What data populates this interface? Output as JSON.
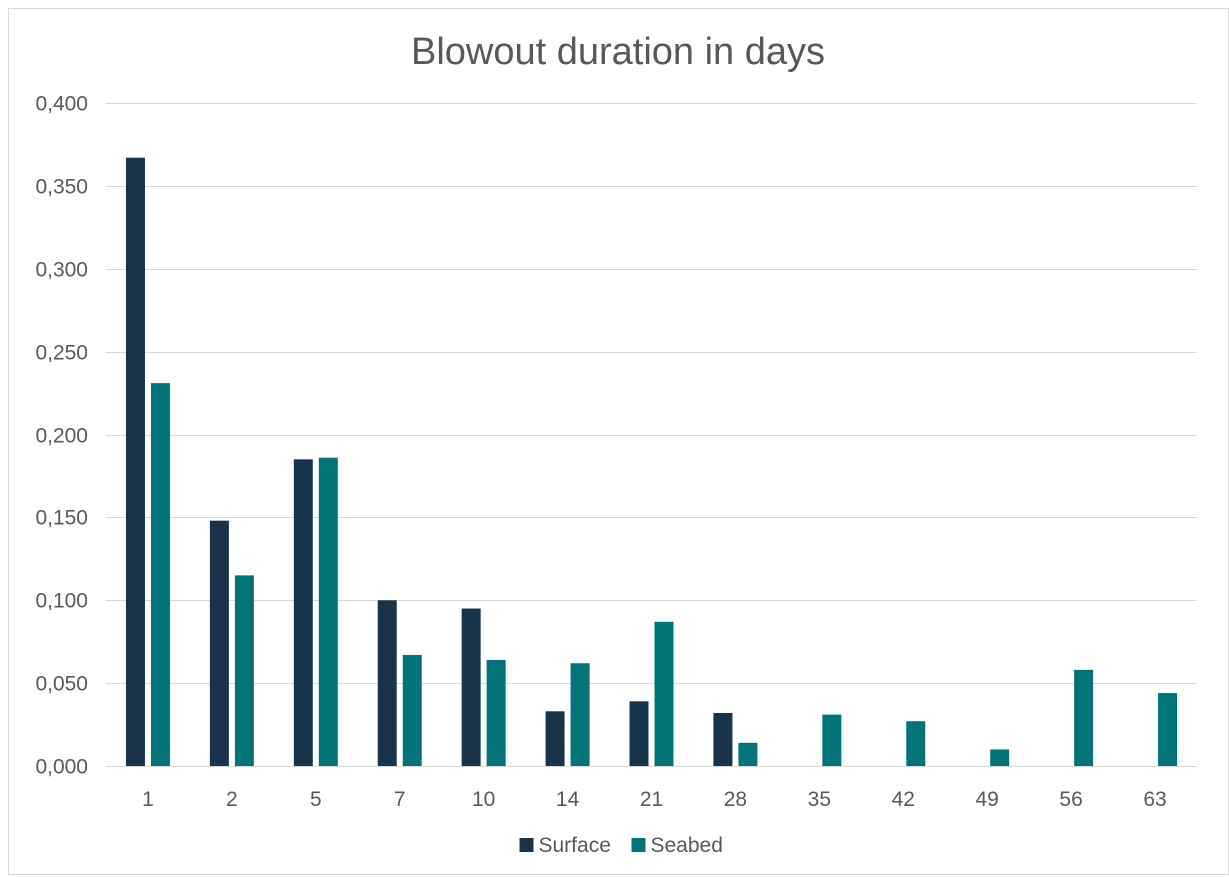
{
  "chart_data": {
    "type": "bar",
    "title": "Blowout duration in days",
    "xlabel": "",
    "ylabel": "",
    "categories": [
      "1",
      "2",
      "5",
      "7",
      "10",
      "14",
      "21",
      "28",
      "35",
      "42",
      "49",
      "56",
      "63"
    ],
    "series": [
      {
        "name": "Surface",
        "color": "#17344a",
        "values": [
          0.367,
          0.148,
          0.185,
          0.1,
          0.095,
          0.033,
          0.039,
          0.032,
          null,
          null,
          null,
          null,
          null
        ]
      },
      {
        "name": "Seabed",
        "color": "#007478",
        "values": [
          0.231,
          0.115,
          0.186,
          0.067,
          0.064,
          0.062,
          0.087,
          0.014,
          0.031,
          0.027,
          0.01,
          0.058,
          0.044
        ]
      }
    ],
    "ylim": [
      0,
      0.4
    ],
    "yticks": [
      "0,000",
      "0,050",
      "0,100",
      "0,150",
      "0,200",
      "0,250",
      "0,300",
      "0,350",
      "0,400"
    ],
    "grid": true,
    "legend_position": "bottom"
  }
}
